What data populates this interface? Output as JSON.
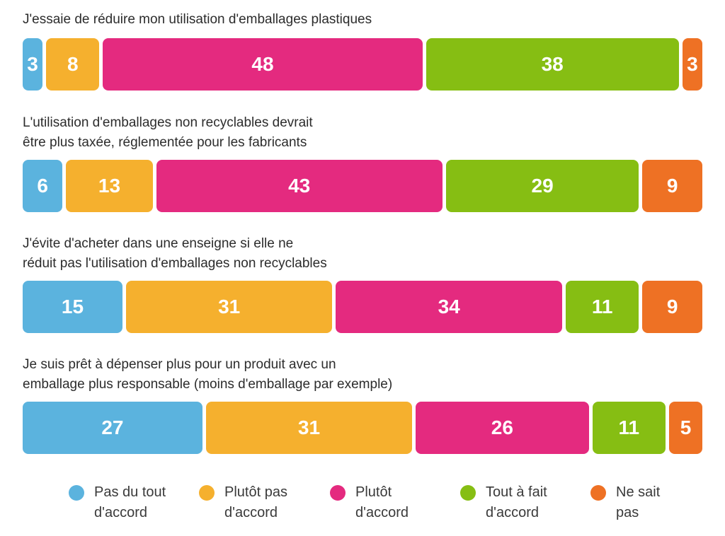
{
  "colors": {
    "pas_du_tout": "#5bb3de",
    "plutot_pas": "#f5b02e",
    "plutot": "#e42a7f",
    "tout_a_fait": "#86be13",
    "ne_sait_pas": "#ee7124"
  },
  "chart_data": {
    "type": "bar",
    "orientation": "horizontal",
    "stacked": true,
    "unit": "%",
    "categories": [
      "J'essaie de réduire mon utilisation d'emballages plastiques",
      "L'utilisation d'emballages non recyclables devrait\nêtre plus taxée, réglementée pour les fabricants",
      "J'évite d'acheter dans une enseigne si elle ne\nréduit pas l'utilisation d'emballages non recyclables",
      "Je suis prêt à dépenser plus pour un produit avec un\nemballage plus responsable (moins d'emballage par exemple)"
    ],
    "series": [
      {
        "name": "Pas du tout d'accord",
        "legend_label": "Pas du tout\nd'accord",
        "color_key": "pas_du_tout",
        "values": [
          3,
          6,
          15,
          27
        ]
      },
      {
        "name": "Plutôt pas d'accord",
        "legend_label": "Plutôt pas\nd'accord",
        "color_key": "plutot_pas",
        "values": [
          8,
          13,
          31,
          31
        ]
      },
      {
        "name": "Plutôt d'accord",
        "legend_label": "Plutôt\nd'accord",
        "color_key": "plutot",
        "values": [
          48,
          43,
          34,
          26
        ]
      },
      {
        "name": "Tout à fait d'accord",
        "legend_label": "Tout à fait\nd'accord",
        "color_key": "tout_a_fait",
        "values": [
          38,
          29,
          11,
          11
        ]
      },
      {
        "name": "Ne sait pas",
        "legend_label": "Ne sait\npas",
        "color_key": "ne_sait_pas",
        "values": [
          3,
          9,
          9,
          5
        ]
      }
    ],
    "legend_position": "bottom",
    "grid": false
  }
}
